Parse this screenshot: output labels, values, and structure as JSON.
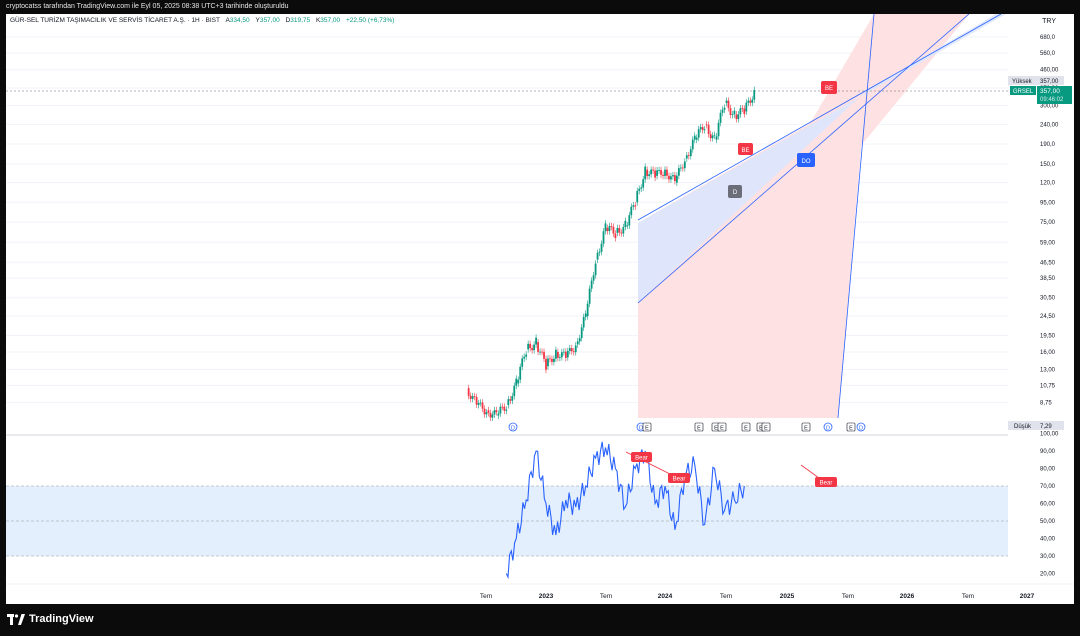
{
  "header": {
    "caption": "cryptocatss tarafından TradingView.com ile Eyl 05, 2025 08:38 UTC+3 tarihinde oluşturuldu"
  },
  "legend": {
    "symbol": "GÜR-SEL TURİZM TAŞIMACILIK VE SERVİS TİCARET A.Ş. · 1H · BIST",
    "o_label": "A",
    "o_value": "334,50",
    "h_label": "Y",
    "h_value": "357,00",
    "l_label": "D",
    "l_value": "319,75",
    "c_label": "K",
    "c_value": "357,00",
    "change": "+22,50 (+6,73%)"
  },
  "currency": "TRY",
  "price_tags": {
    "high_label": "Yüksek",
    "high_value": "357,00",
    "symbol": "GRSEL",
    "last_value": "357,00",
    "countdown": "09:46:02",
    "low_label": "Düşük",
    "low_value": "7,29"
  },
  "footer": {
    "brand": "TradingView"
  },
  "colors": {
    "up": "#089981",
    "down": "#f23645",
    "rsi": "#2962ff",
    "bear": "#f23645",
    "channel": "#2962ff"
  },
  "chart_data": [
    {
      "type": "candlestick",
      "scale": "log",
      "y_ticks": [
        "680,0",
        "560,0",
        "460,00",
        "370,00",
        "300,00",
        "240,00",
        "190,0",
        "150,0",
        "120,0",
        "95,00",
        "75,00",
        "59,00",
        "46,50",
        "38,50",
        "30,50",
        "24,50",
        "19,50",
        "16,00",
        "13,00",
        "10,75",
        "8,75"
      ],
      "x_ticks": [
        "Tem",
        "2023",
        "Tem",
        "2024",
        "Tem",
        "2025",
        "Tem",
        "2026",
        "Tem",
        "2027"
      ],
      "grid": true,
      "series_close": [
        [
          "2022-05",
          10.4
        ],
        [
          "2022-06",
          8.5
        ],
        [
          "2022-07",
          8.0
        ],
        [
          "2022-08",
          7.5
        ],
        [
          "2022-09",
          8.5
        ],
        [
          "2022-10",
          11.0
        ],
        [
          "2022-11",
          16.5
        ],
        [
          "2022-12",
          18.0
        ],
        [
          "2023-01",
          13.5
        ],
        [
          "2023-02",
          16.0
        ],
        [
          "2023-03",
          15.0
        ],
        [
          "2023-04",
          17.5
        ],
        [
          "2023-05",
          24.5
        ],
        [
          "2023-06",
          48.0
        ],
        [
          "2023-07",
          70.0
        ],
        [
          "2023-08",
          66.0
        ],
        [
          "2023-09",
          72.0
        ],
        [
          "2023-10",
          95.0
        ],
        [
          "2023-11",
          140.0
        ],
        [
          "2023-12",
          130.0
        ],
        [
          "2024-01",
          140.0
        ],
        [
          "2024-02",
          120.0
        ],
        [
          "2024-03",
          160.0
        ],
        [
          "2024-04",
          200.0
        ],
        [
          "2024-05",
          240.0
        ],
        [
          "2024-06",
          200.0
        ],
        [
          "2024-07",
          310.0
        ],
        [
          "2024-08",
          270.0
        ],
        [
          "2024-09",
          280.0
        ],
        [
          "2024-10",
          357.0
        ]
      ],
      "annotations": [
        {
          "label": "BE",
          "kind": "bearish"
        },
        {
          "label": "D",
          "kind": "neutral"
        },
        {
          "label": "DO",
          "kind": "bullish"
        },
        {
          "label": "BE",
          "kind": "bearish"
        }
      ],
      "event_markers": [
        "D",
        "D",
        "E",
        "E",
        "E",
        "E",
        "E",
        "E",
        "E",
        "E",
        "D",
        "E",
        "D"
      ]
    },
    {
      "type": "line",
      "name": "",
      "y_ticks": [
        "100,00",
        "90,00",
        "80,00",
        "70,00",
        "60,00",
        "50,00",
        "40,00",
        "30,00",
        "20,00"
      ],
      "band": [
        30,
        70
      ],
      "midline": 50,
      "values": [
        [
          "2022-09",
          20
        ],
        [
          "2022-10",
          40
        ],
        [
          "2022-11",
          62
        ],
        [
          "2022-12",
          90
        ],
        [
          "2023-01",
          60
        ],
        [
          "2023-02",
          42
        ],
        [
          "2023-03",
          62
        ],
        [
          "2023-04",
          58
        ],
        [
          "2023-05",
          70
        ],
        [
          "2023-06",
          86
        ],
        [
          "2023-07",
          92
        ],
        [
          "2023-08",
          80
        ],
        [
          "2023-09",
          58
        ],
        [
          "2023-10",
          80
        ],
        [
          "2023-11",
          90
        ],
        [
          "2023-12",
          60
        ],
        [
          "2024-01",
          70
        ],
        [
          "2024-02",
          45
        ],
        [
          "2024-03",
          76
        ],
        [
          "2024-04",
          82
        ],
        [
          "2024-05",
          48
        ],
        [
          "2024-06",
          80
        ],
        [
          "2024-07",
          56
        ],
        [
          "2024-08",
          62
        ],
        [
          "2024-09",
          70
        ]
      ],
      "divergence_labels": [
        "Bear",
        "Bear",
        "Bear"
      ]
    }
  ]
}
